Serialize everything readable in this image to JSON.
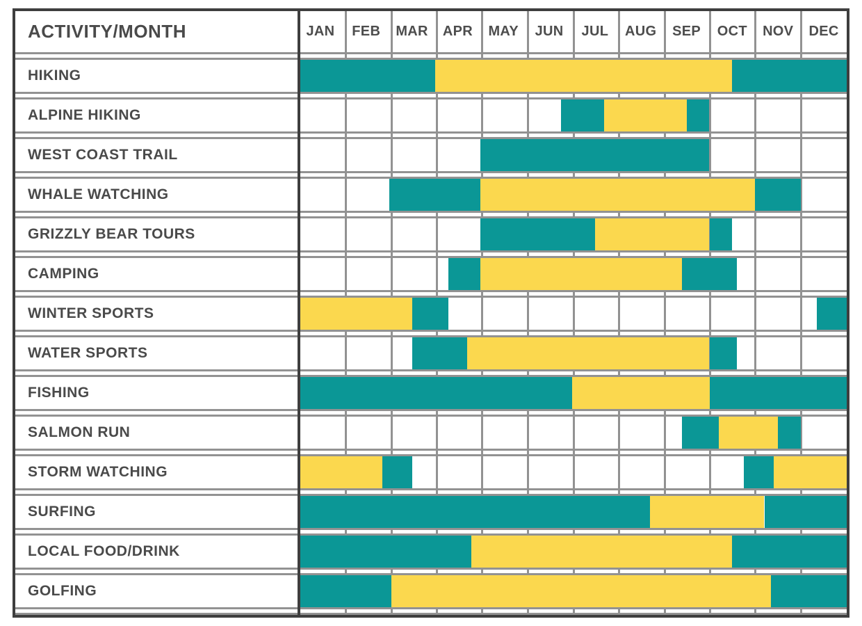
{
  "colors": {
    "teal": "#0B9796",
    "yellow": "#FBD84E",
    "grid": "#929292",
    "border": "#3E3E3E",
    "text": "#4A4A4A",
    "background": "#FFFFFF"
  },
  "chart_data": {
    "type": "gantt",
    "title": "ACTIVITY/MONTH",
    "x_axis": {
      "categories": [
        "JAN",
        "FEB",
        "MAR",
        "APR",
        "MAY",
        "JUN",
        "JUL",
        "AUG",
        "SEP",
        "OCT",
        "NOV",
        "DEC"
      ],
      "range": [
        0,
        12
      ],
      "unit": "month"
    },
    "grid": true,
    "legend_position": "none",
    "series_colors": {
      "teal": "#0B9796",
      "yellow": "#FBD84E"
    },
    "activities": [
      {
        "label": "HIKING",
        "segments": [
          {
            "start": 0,
            "end": 3.0,
            "color": "teal"
          },
          {
            "start": 3.0,
            "end": 9.5,
            "color": "yellow"
          },
          {
            "start": 9.5,
            "end": 12,
            "color": "teal"
          }
        ]
      },
      {
        "label": "ALPINE HIKING",
        "segments": [
          {
            "start": 5.75,
            "end": 6.7,
            "color": "teal"
          },
          {
            "start": 6.7,
            "end": 8.5,
            "color": "yellow"
          },
          {
            "start": 8.5,
            "end": 9.0,
            "color": "teal"
          }
        ]
      },
      {
        "label": "WEST COAST TRAIL",
        "segments": [
          {
            "start": 4.0,
            "end": 9.0,
            "color": "teal"
          }
        ]
      },
      {
        "label": "WHALE WATCHING",
        "segments": [
          {
            "start": 2.0,
            "end": 4.0,
            "color": "teal"
          },
          {
            "start": 4.0,
            "end": 10.0,
            "color": "yellow"
          },
          {
            "start": 10.0,
            "end": 11.0,
            "color": "teal"
          }
        ]
      },
      {
        "label": "GRIZZLY BEAR TOURS",
        "segments": [
          {
            "start": 4.0,
            "end": 6.5,
            "color": "teal"
          },
          {
            "start": 6.5,
            "end": 9.0,
            "color": "yellow"
          },
          {
            "start": 9.0,
            "end": 9.5,
            "color": "teal"
          }
        ]
      },
      {
        "label": "CAMPING",
        "segments": [
          {
            "start": 3.3,
            "end": 4.0,
            "color": "teal"
          },
          {
            "start": 4.0,
            "end": 8.4,
            "color": "yellow"
          },
          {
            "start": 8.4,
            "end": 9.6,
            "color": "teal"
          }
        ]
      },
      {
        "label": "WINTER SPORTS",
        "segments": [
          {
            "start": 0,
            "end": 2.5,
            "color": "yellow"
          },
          {
            "start": 2.5,
            "end": 3.3,
            "color": "teal"
          },
          {
            "start": 11.35,
            "end": 12,
            "color": "teal"
          }
        ]
      },
      {
        "label": "WATER SPORTS",
        "segments": [
          {
            "start": 2.5,
            "end": 3.7,
            "color": "teal"
          },
          {
            "start": 3.7,
            "end": 9.0,
            "color": "yellow"
          },
          {
            "start": 9.0,
            "end": 9.6,
            "color": "teal"
          }
        ]
      },
      {
        "label": "FISHING",
        "segments": [
          {
            "start": 0,
            "end": 6.0,
            "color": "teal"
          },
          {
            "start": 6.0,
            "end": 9.0,
            "color": "yellow"
          },
          {
            "start": 9.0,
            "end": 12,
            "color": "teal"
          }
        ]
      },
      {
        "label": "SALMON RUN",
        "segments": [
          {
            "start": 8.4,
            "end": 9.2,
            "color": "teal"
          },
          {
            "start": 9.2,
            "end": 10.5,
            "color": "yellow"
          },
          {
            "start": 10.5,
            "end": 11.0,
            "color": "teal"
          }
        ]
      },
      {
        "label": "STORM WATCHING",
        "segments": [
          {
            "start": 0,
            "end": 1.85,
            "color": "yellow"
          },
          {
            "start": 1.85,
            "end": 2.5,
            "color": "teal"
          },
          {
            "start": 9.75,
            "end": 10.4,
            "color": "teal"
          },
          {
            "start": 10.4,
            "end": 12,
            "color": "yellow"
          }
        ]
      },
      {
        "label": "SURFING",
        "segments": [
          {
            "start": 0,
            "end": 7.7,
            "color": "teal"
          },
          {
            "start": 7.7,
            "end": 10.2,
            "color": "yellow"
          },
          {
            "start": 10.2,
            "end": 12,
            "color": "teal"
          }
        ]
      },
      {
        "label": "LOCAL FOOD/DRINK",
        "segments": [
          {
            "start": 0,
            "end": 3.8,
            "color": "teal"
          },
          {
            "start": 3.8,
            "end": 9.5,
            "color": "yellow"
          },
          {
            "start": 9.5,
            "end": 12,
            "color": "teal"
          }
        ]
      },
      {
        "label": "GOLFING",
        "segments": [
          {
            "start": 0,
            "end": 2.05,
            "color": "teal"
          },
          {
            "start": 2.05,
            "end": 10.35,
            "color": "yellow"
          },
          {
            "start": 10.35,
            "end": 12,
            "color": "teal"
          }
        ]
      }
    ]
  }
}
